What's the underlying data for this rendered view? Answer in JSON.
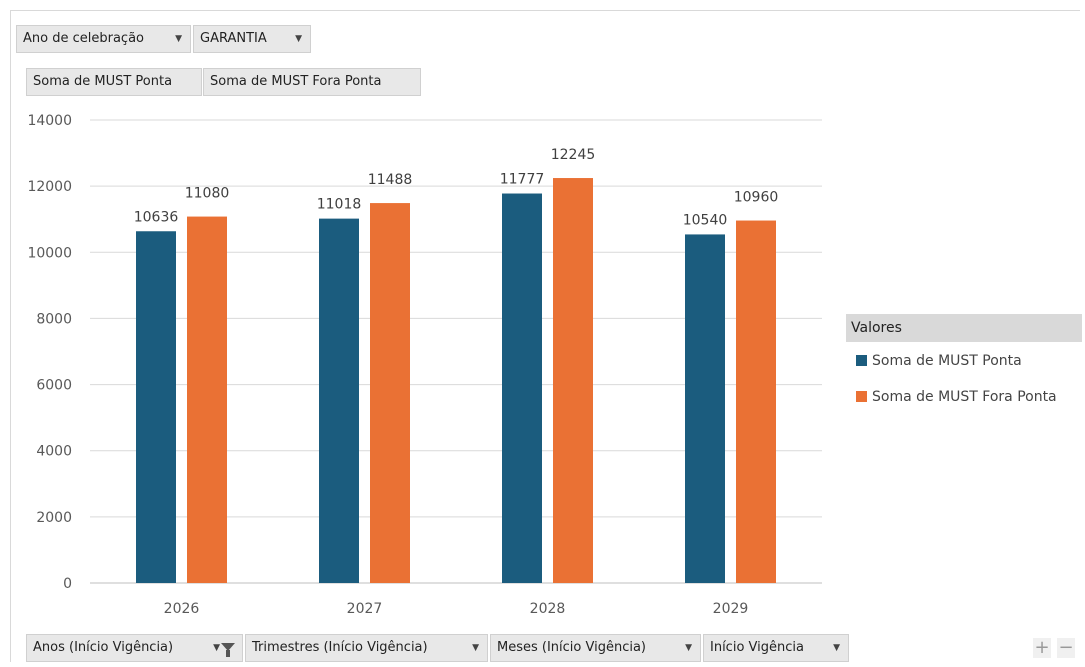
{
  "filters": {
    "report": [
      {
        "label": "Ano de celebração"
      },
      {
        "label": "GARANTIA"
      }
    ],
    "values": [
      {
        "label": "Soma de MUST Ponta"
      },
      {
        "label": "Soma de MUST Fora Ponta"
      }
    ],
    "axis": [
      {
        "label": "Anos (Início Vigência)",
        "filtered": true
      },
      {
        "label": "Trimestres (Início Vigência)",
        "filtered": false
      },
      {
        "label": "Meses (Início Vigência)",
        "filtered": false
      },
      {
        "label": "Início Vigência",
        "filtered": false
      }
    ]
  },
  "legend": {
    "title": "Valores",
    "placement": "right"
  },
  "zoom": {
    "plus": "+",
    "minus": "−"
  },
  "chart_data": {
    "type": "bar",
    "categories": [
      "2026",
      "2027",
      "2028",
      "2029"
    ],
    "series": [
      {
        "name": "Soma de MUST Ponta",
        "color": "#1b5c7e",
        "values": [
          10636,
          11018,
          11777,
          10540
        ]
      },
      {
        "name": "Soma de MUST Fora Ponta",
        "color": "#ea7134",
        "values": [
          11080,
          11488,
          12245,
          10960
        ]
      }
    ],
    "title": "",
    "xlabel": "",
    "ylabel": "",
    "ylim": [
      0,
      14000
    ],
    "yticks": [
      0,
      2000,
      4000,
      6000,
      8000,
      10000,
      12000,
      14000
    ],
    "grid": true,
    "data_labels": true
  }
}
